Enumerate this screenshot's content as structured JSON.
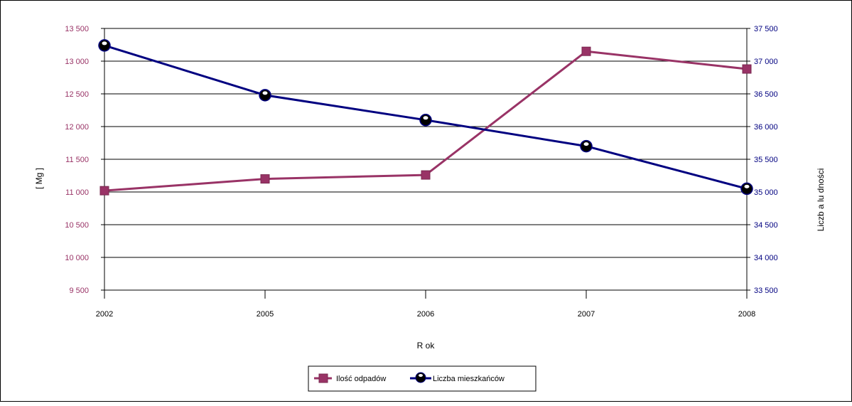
{
  "chart_data": {
    "type": "line",
    "categories": [
      "2002",
      "2005",
      "2006",
      "2007",
      "2008"
    ],
    "xlabel": "R ok",
    "ylabel_left": "[ Mg ]",
    "ylabel_right": "Liczb a lu dności",
    "y_left": {
      "min": 9500,
      "max": 13500,
      "step": 500,
      "tick_labels": [
        "9 500",
        "10 000",
        "10 500",
        "11 000",
        "11 500",
        "12 000",
        "12 500",
        "13 000",
        "13 500"
      ]
    },
    "y_right": {
      "min": 33500,
      "max": 37500,
      "step": 500,
      "tick_labels": [
        "33 500",
        "34 000",
        "34 500",
        "35 000",
        "35 500",
        "36 000",
        "36 500",
        "37 000",
        "37 500"
      ]
    },
    "grid": "horizontal",
    "legend_position": "bottom-center",
    "series": [
      {
        "name": "Ilość odpadów",
        "axis": "left",
        "color": "#993366",
        "marker": "square",
        "values": [
          11020,
          11200,
          11260,
          13150,
          12880
        ]
      },
      {
        "name": "Liczba mieszkańców",
        "axis": "right",
        "color": "#000080",
        "marker": "circle",
        "values": [
          37240,
          36480,
          36100,
          35700,
          35050
        ]
      }
    ]
  },
  "colors": {
    "left_axis_text": "#993366",
    "right_axis_text": "#000080",
    "grid": "#000000"
  }
}
